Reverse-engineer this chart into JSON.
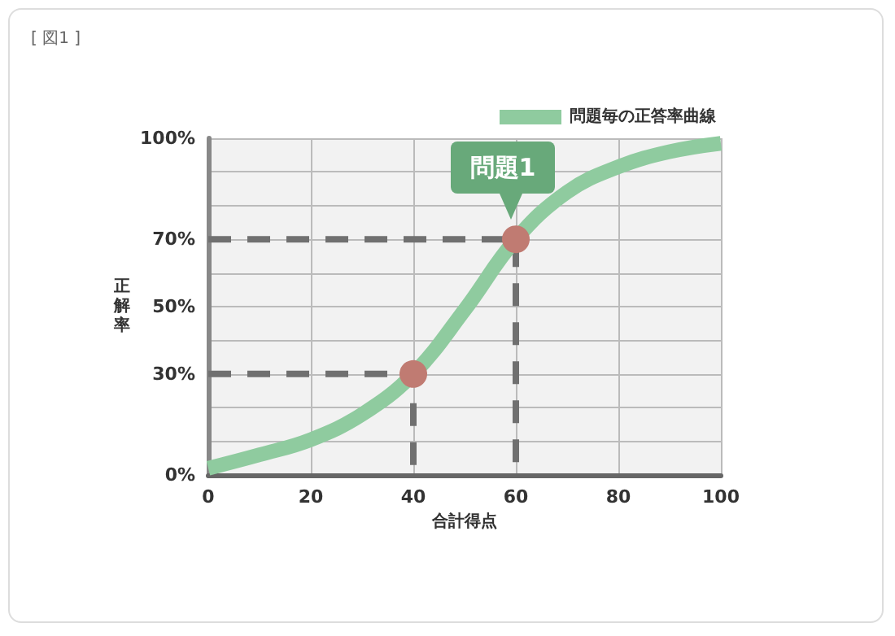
{
  "chart_data": {
    "type": "line",
    "title": "[ 図1 ]",
    "xlabel": "合計得点",
    "ylabel": "正解率",
    "xlim": [
      0,
      100
    ],
    "xticks": [
      0,
      20,
      40,
      60,
      80,
      100
    ],
    "ylim": [
      0,
      100
    ],
    "yticks": [
      {
        "value": 0,
        "label": "0%"
      },
      {
        "value": 10,
        "label": null
      },
      {
        "value": 20,
        "label": null
      },
      {
        "value": 30,
        "label": "30%"
      },
      {
        "value": 40,
        "label": null
      },
      {
        "value": 50,
        "label": "50%"
      },
      {
        "value": 60,
        "label": null
      },
      {
        "value": 70,
        "label": "70%"
      },
      {
        "value": 80,
        "label": null
      },
      {
        "value": 90,
        "label": null
      },
      {
        "value": 100,
        "label": "100%"
      }
    ],
    "grid": true,
    "legend": "top right",
    "marker": "none",
    "series": [
      {
        "name": "問題毎の正答率曲線",
        "color": "#8fcb9f",
        "x": [
          0,
          10,
          20,
          30,
          40,
          50,
          60,
          70,
          80,
          90,
          100
        ],
        "values": [
          2,
          6,
          10.5,
          18,
          30,
          49,
          70,
          84,
          91.5,
          96,
          98.5
        ]
      },
      {
        "type": "line",
        "line_style": "dashed",
        "color": "#707070",
        "x": [
          0,
          40,
          40
        ],
        "values": [
          30,
          30,
          0
        ]
      },
      {
        "type": "line",
        "line_style": "dashed",
        "color": "#707070",
        "x": [
          0,
          60,
          60
        ],
        "values": [
          70,
          70,
          0
        ]
      },
      {
        "type": "scatter",
        "marker": "circle",
        "color": "#c07b72",
        "x": [
          40,
          60
        ],
        "values": [
          30,
          70
        ]
      }
    ],
    "annotations": [
      {
        "text": "問題1",
        "x": 60,
        "y": 70
      }
    ]
  }
}
